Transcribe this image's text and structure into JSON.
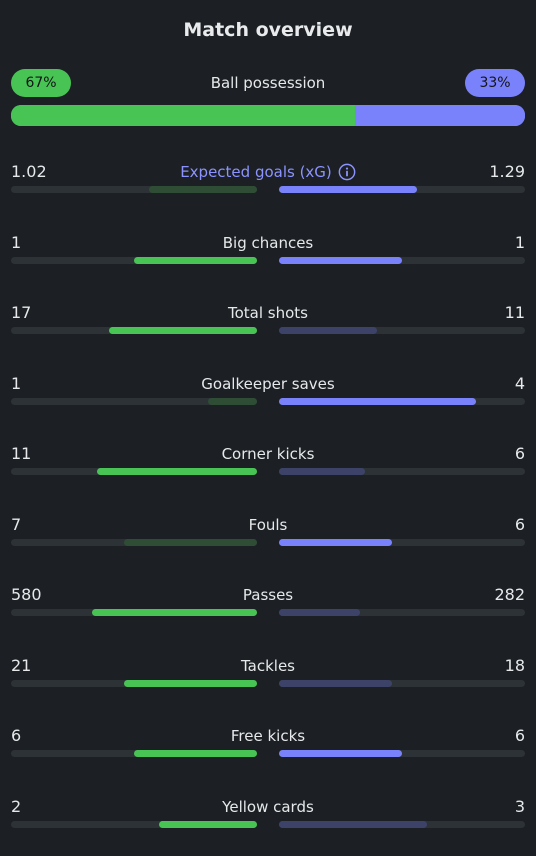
{
  "title": "Match overview",
  "possession": {
    "label": "Ball possession",
    "home": "67%",
    "away": "33%",
    "home_value": 67,
    "away_value": 33
  },
  "colors": {
    "home": "#48c454",
    "away": "#7a82fb",
    "accent": "#8c93ff",
    "background": "#1c2024"
  },
  "stats": [
    {
      "label": "Expected goals (xG)",
      "home": "1.02",
      "away": "1.29",
      "home_value": 1.02,
      "away_value": 1.29,
      "home_bar": 0.44,
      "away_bar": 0.56,
      "winner": "away",
      "info": true
    },
    {
      "label": "Big chances",
      "home": "1",
      "away": "1",
      "home_value": 1,
      "away_value": 1,
      "home_bar": 0.5,
      "away_bar": 0.5,
      "winner": "both"
    },
    {
      "label": "Total shots",
      "home": "17",
      "away": "11",
      "home_value": 17,
      "away_value": 11,
      "home_bar": 0.6,
      "away_bar": 0.4,
      "winner": "home"
    },
    {
      "label": "Goalkeeper saves",
      "home": "1",
      "away": "4",
      "home_value": 1,
      "away_value": 4,
      "home_bar": 0.2,
      "away_bar": 0.8,
      "winner": "away"
    },
    {
      "label": "Corner kicks",
      "home": "11",
      "away": "6",
      "home_value": 11,
      "away_value": 6,
      "home_bar": 0.65,
      "away_bar": 0.35,
      "winner": "home"
    },
    {
      "label": "Fouls",
      "home": "7",
      "away": "6",
      "home_value": 7,
      "away_value": 6,
      "home_bar": 0.54,
      "away_bar": 0.46,
      "winner": "away"
    },
    {
      "label": "Passes",
      "home": "580",
      "away": "282",
      "home_value": 580,
      "away_value": 282,
      "home_bar": 0.67,
      "away_bar": 0.33,
      "winner": "home"
    },
    {
      "label": "Tackles",
      "home": "21",
      "away": "18",
      "home_value": 21,
      "away_value": 18,
      "home_bar": 0.54,
      "away_bar": 0.46,
      "winner": "home"
    },
    {
      "label": "Free kicks",
      "home": "6",
      "away": "6",
      "home_value": 6,
      "away_value": 6,
      "home_bar": 0.5,
      "away_bar": 0.5,
      "winner": "both"
    },
    {
      "label": "Yellow cards",
      "home": "2",
      "away": "3",
      "home_value": 2,
      "away_value": 3,
      "home_bar": 0.4,
      "away_bar": 0.6,
      "winner": "home"
    }
  ]
}
